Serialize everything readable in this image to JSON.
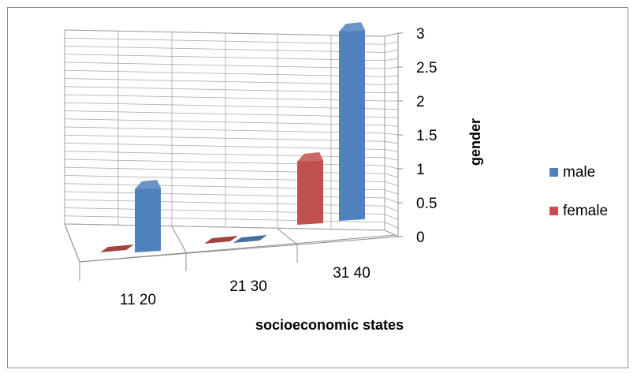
{
  "chart_data": {
    "type": "bar",
    "style": "3d-clustered-column",
    "categories": [
      "11 20",
      "21 30",
      "31 40"
    ],
    "series": [
      {
        "name": "male",
        "values": [
          1,
          0,
          3
        ],
        "color": "#4f81bd"
      },
      {
        "name": "female",
        "values": [
          0,
          0,
          1
        ],
        "color": "#c0504d"
      }
    ],
    "xlabel": "socioeconomic states",
    "ylabel": "gender",
    "ylim": [
      0,
      3
    ],
    "yticks": [
      "0",
      "0.5",
      "1",
      "1.5",
      "2",
      "2.5",
      "3"
    ],
    "grid": true,
    "legend_position": "right"
  }
}
